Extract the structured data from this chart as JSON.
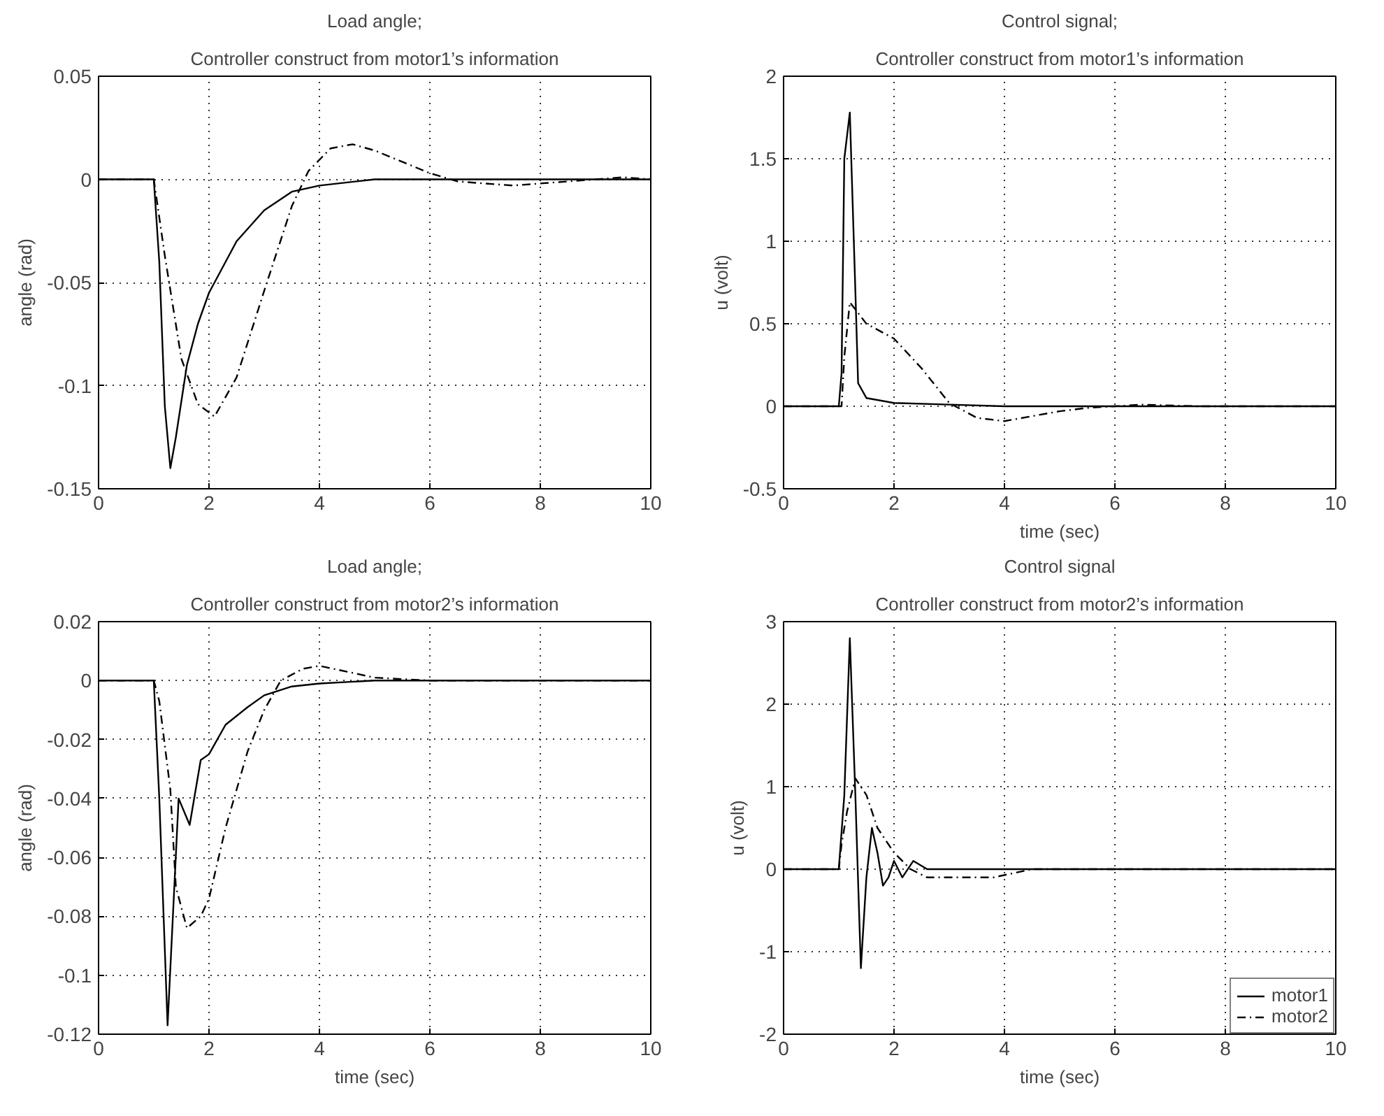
{
  "chart_data": [
    {
      "type": "line",
      "title": "Load angle;",
      "subtitle": "Controller construct from motor1’s information",
      "ylabel": "angle (rad)",
      "xlim": [
        0,
        10
      ],
      "xticks": [
        0,
        2,
        4,
        6,
        8,
        10
      ],
      "ylim": [
        -0.15,
        0.05
      ],
      "yticks": [
        -0.15,
        -0.1,
        -0.05,
        0,
        0.05
      ],
      "grid": true,
      "series": [
        {
          "color": "#000000",
          "line_style": "solid",
          "x": [
            0,
            1,
            1.1,
            1.2,
            1.3,
            1.4,
            1.6,
            1.8,
            2,
            2.5,
            3,
            3.5,
            4,
            5,
            10
          ],
          "values": [
            0,
            0,
            -0.04,
            -0.11,
            -0.14,
            -0.125,
            -0.09,
            -0.07,
            -0.055,
            -0.03,
            -0.015,
            -0.006,
            -0.003,
            0,
            0
          ]
        },
        {
          "color": "#000000",
          "line_style": "dashed",
          "x": [
            0,
            1,
            1.2,
            1.5,
            1.8,
            2.1,
            2.5,
            3,
            3.5,
            3.8,
            4.2,
            4.6,
            5,
            6,
            6.5,
            7.5,
            8.5,
            9.5,
            10
          ],
          "values": [
            0,
            0,
            -0.037,
            -0.087,
            -0.109,
            -0.115,
            -0.096,
            -0.054,
            -0.013,
            0.004,
            0.015,
            0.017,
            0.014,
            0.003,
            -0.001,
            -0.003,
            -0.001,
            0.001,
            0
          ]
        }
      ]
    },
    {
      "type": "line",
      "title": "Control signal;",
      "subtitle": "Controller construct from motor1’s information",
      "xlabel": "time (sec)",
      "ylabel": "u (volt)",
      "xlim": [
        0,
        10
      ],
      "xticks": [
        0,
        2,
        4,
        6,
        8,
        10
      ],
      "ylim": [
        -0.5,
        2
      ],
      "yticks": [
        -0.5,
        0,
        0.5,
        1,
        1.5,
        2
      ],
      "grid": true,
      "series": [
        {
          "color": "#000000",
          "line_style": "solid",
          "x": [
            0,
            1,
            1.05,
            1.1,
            1.2,
            1.3,
            1.35,
            1.5,
            2,
            3,
            4,
            10
          ],
          "values": [
            0,
            0,
            0.2,
            1.5,
            1.78,
            0.7,
            0.14,
            0.05,
            0.02,
            0.01,
            0,
            0
          ]
        },
        {
          "color": "#000000",
          "line_style": "dashed",
          "x": [
            0,
            1.05,
            1.1,
            1.2,
            1.5,
            2,
            2.5,
            3,
            3.5,
            4,
            4.5,
            5,
            5.5,
            6,
            6.5,
            7.5,
            8,
            10
          ],
          "values": [
            0,
            0,
            0.3,
            0.63,
            0.5,
            0.41,
            0.23,
            0.02,
            -0.07,
            -0.09,
            -0.06,
            -0.03,
            -0.01,
            0,
            0.01,
            0,
            0,
            0
          ]
        }
      ]
    },
    {
      "type": "line",
      "title": "Load angle;",
      "subtitle": "Controller construct from motor2’s information",
      "xlabel": "time (sec)",
      "ylabel": "angle (rad)",
      "xlim": [
        0,
        10
      ],
      "xticks": [
        0,
        2,
        4,
        6,
        8,
        10
      ],
      "ylim": [
        -0.12,
        0.02
      ],
      "yticks": [
        -0.12,
        -0.1,
        -0.08,
        -0.06,
        -0.04,
        -0.02,
        0,
        0.02
      ],
      "grid": true,
      "series": [
        {
          "color": "#000000",
          "line_style": "solid",
          "x": [
            0,
            1,
            1.1,
            1.25,
            1.45,
            1.65,
            1.85,
            2,
            2.3,
            2.7,
            3,
            3.5,
            4,
            5,
            10
          ],
          "values": [
            0,
            0,
            -0.04,
            -0.117,
            -0.04,
            -0.049,
            -0.027,
            -0.025,
            -0.015,
            -0.009,
            -0.005,
            -0.002,
            -0.001,
            0,
            0
          ]
        },
        {
          "color": "#000000",
          "line_style": "dashed",
          "x": [
            0,
            1,
            1.1,
            1.3,
            1.4,
            1.6,
            1.85,
            2,
            2.3,
            2.7,
            3,
            3.3,
            3.7,
            4,
            4.5,
            5,
            6,
            10
          ],
          "values": [
            0,
            0,
            -0.007,
            -0.037,
            -0.07,
            -0.084,
            -0.08,
            -0.074,
            -0.05,
            -0.024,
            -0.01,
            0,
            0.004,
            0.005,
            0.003,
            0.001,
            0,
            0
          ]
        }
      ]
    },
    {
      "type": "line",
      "title": "Control signal",
      "subtitle": "Controller construct from motor2’s information",
      "xlabel": "time (sec)",
      "ylabel": "u (volt)",
      "xlim": [
        0,
        10
      ],
      "xticks": [
        0,
        2,
        4,
        6,
        8,
        10
      ],
      "ylim": [
        -2,
        3
      ],
      "yticks": [
        -2,
        -1,
        0,
        1,
        2,
        3
      ],
      "grid": true,
      "legend": "bottom right",
      "series": [
        {
          "name": "motor1",
          "color": "#000000",
          "line_style": "solid",
          "x": [
            0,
            1,
            1.1,
            1.2,
            1.3,
            1.4,
            1.5,
            1.6,
            1.7,
            1.8,
            1.9,
            2,
            2.15,
            2.35,
            2.6,
            3,
            10
          ],
          "values": [
            0,
            0,
            0.9,
            2.8,
            0.9,
            -1.2,
            -0.1,
            0.5,
            0.2,
            -0.2,
            -0.1,
            0.1,
            -0.1,
            0.1,
            0,
            0,
            0
          ]
        },
        {
          "name": "motor2",
          "color": "#000000",
          "line_style": "dashed",
          "x": [
            0,
            1,
            1.05,
            1.15,
            1.3,
            1.5,
            1.7,
            2,
            2.3,
            2.6,
            3,
            3.5,
            3.8,
            4.5,
            5,
            10
          ],
          "values": [
            0,
            0,
            0.3,
            0.7,
            1.1,
            0.9,
            0.5,
            0.2,
            0,
            -0.1,
            -0.1,
            -0.1,
            -0.1,
            0,
            0,
            0
          ]
        }
      ]
    }
  ]
}
